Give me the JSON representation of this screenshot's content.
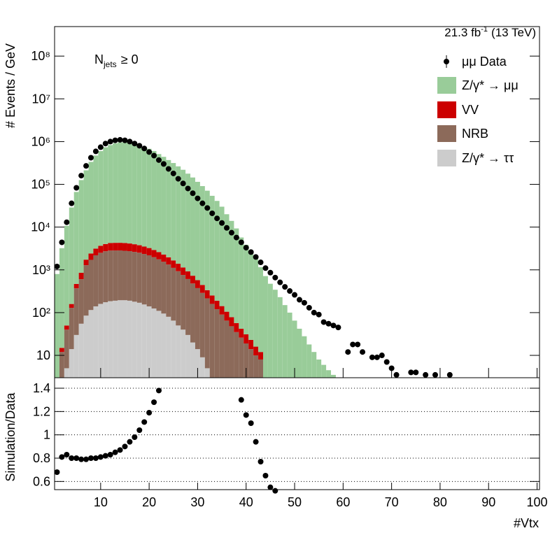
{
  "chart_data": [
    {
      "type": "stacked_bar",
      "lumi": {
        "main": "21.3 fb",
        "sup": "-1",
        "rest": "(13 TeV)"
      },
      "annotation": {
        "main": "N",
        "sub": "jets",
        "rest": "≥ 0"
      },
      "ylabel": "# Events / GeV",
      "log_y": true,
      "legend": "upper right",
      "x": [
        1,
        2,
        3,
        4,
        5,
        6,
        7,
        8,
        9,
        10,
        11,
        12,
        13,
        14,
        15,
        16,
        17,
        18,
        19,
        20,
        21,
        22,
        23,
        24,
        25,
        26,
        27,
        28,
        29,
        30,
        31,
        32,
        33,
        34,
        35,
        36,
        37,
        38,
        39,
        40,
        41,
        42,
        43,
        44,
        45,
        46,
        47,
        48,
        49,
        50,
        51,
        52,
        53,
        54,
        55,
        56,
        57,
        58
      ],
      "series": [
        {
          "name": "Z/γ* → μμ",
          "color": "#99cc99",
          "values": [
            800,
            3200,
            10700,
            28600,
            66000,
            125000,
            211000,
            333000,
            469000,
            596000,
            734000,
            826000,
            906000,
            953000,
            959000,
            936000,
            878000,
            828000,
            762000,
            675000,
            599000,
            508000,
            438000,
            368000,
            314000,
            262000,
            218000,
            177000,
            144000,
            114000,
            90600,
            70700,
            53700,
            40800,
            29900,
            19900,
            13900,
            9240,
            5680,
            3830,
            2840,
            1860,
            1140,
            715,
            473,
            343,
            230,
            150,
            100,
            65,
            42,
            28,
            18,
            12,
            8,
            6,
            4.5,
            3.5
          ]
        },
        {
          "name": "VV",
          "color": "#cc0000",
          "values": [
            null,
            3,
            10,
            30,
            100,
            250,
            450,
            700,
            950,
            1150,
            1300,
            1400,
            1450,
            1450,
            1450,
            1400,
            1350,
            1250,
            1150,
            1050,
            950,
            850,
            740,
            640,
            550,
            460,
            380,
            310,
            250,
            200,
            155,
            120,
            92,
            70,
            52,
            40,
            30,
            22,
            16,
            12,
            9,
            6,
            4,
            null,
            null,
            null,
            null,
            null,
            null,
            null,
            null,
            null,
            null,
            null,
            null,
            null,
            null,
            null
          ]
        },
        {
          "name": "NRB",
          "color": "#8c6a5a",
          "values": [
            null,
            12,
            35,
            115,
            340,
            550,
            1200,
            1600,
            2050,
            2350,
            2550,
            2650,
            2650,
            2650,
            2600,
            2550,
            2450,
            2350,
            2200,
            2050,
            1850,
            1650,
            1450,
            1250,
            1050,
            880,
            720,
            580,
            460,
            360,
            280,
            210,
            160,
            120,
            90,
            65,
            48,
            35,
            26,
            19,
            14,
            10,
            8,
            null,
            null,
            null,
            null,
            null,
            null,
            null,
            null,
            null,
            null,
            null,
            null,
            null,
            null,
            null
          ]
        },
        {
          "name": "Z/γ* → ττ",
          "color": "#cccccc",
          "values": [
            null,
            null,
            5,
            14,
            30,
            55,
            85,
            115,
            140,
            160,
            175,
            185,
            190,
            195,
            195,
            190,
            180,
            170,
            155,
            140,
            125,
            110,
            95,
            80,
            65,
            50,
            40,
            30,
            20,
            14,
            9,
            5,
            null,
            null,
            null,
            null,
            null,
            null,
            null,
            null,
            null,
            null,
            null,
            null,
            null,
            null,
            null,
            null,
            null,
            null,
            null,
            null,
            null,
            null,
            null,
            null,
            null,
            null
          ]
        }
      ],
      "data": {
        "name": "μμ Data",
        "color": "#000000",
        "x": [
          1,
          2,
          3,
          4,
          5,
          6,
          7,
          8,
          9,
          10,
          11,
          12,
          13,
          14,
          15,
          16,
          17,
          18,
          19,
          20,
          21,
          22,
          23,
          24,
          25,
          26,
          27,
          28,
          29,
          30,
          31,
          32,
          33,
          34,
          35,
          36,
          37,
          38,
          39,
          40,
          41,
          42,
          43,
          44,
          45,
          46,
          47,
          48,
          49,
          50,
          51,
          52,
          53,
          54,
          55,
          56,
          57,
          58,
          59,
          61,
          62,
          63,
          64,
          66,
          67,
          68,
          69,
          70,
          71,
          74,
          75,
          77,
          79,
          82
        ],
        "values": [
          1200,
          4400,
          13000,
          36000,
          83000,
          160000,
          270000,
          420000,
          590000,
          740000,
          900000,
          1000000,
          1070000,
          1100000,
          1070000,
          1000000,
          900000,
          800000,
          690000,
          570000,
          470000,
          370000,
          300000,
          230000,
          180000,
          135000,
          105000,
          80000,
          62000,
          47000,
          36000,
          28000,
          21000,
          16000,
          12500,
          9600,
          7400,
          5700,
          4400,
          3300,
          2600,
          2000,
          1500,
          1100,
          860,
          660,
          510,
          400,
          320,
          260,
          200,
          170,
          130,
          100,
          90,
          60,
          55,
          50,
          45,
          12,
          18,
          18,
          12,
          9,
          9,
          10,
          7,
          5,
          3.5,
          4,
          4,
          3.5,
          3.5,
          3.5
        ]
      },
      "xlim": [
        0.5,
        100.5
      ],
      "ylim": [
        3,
        490000000
      ],
      "yticks": [
        10,
        {
          "value": 100,
          "label": "10²"
        },
        {
          "value": 1000,
          "label": "10³"
        },
        {
          "value": 10000,
          "label": "10⁴"
        },
        {
          "value": 100000,
          "label": "10⁵"
        },
        {
          "value": 1000000,
          "label": "10⁶"
        },
        {
          "value": 10000000,
          "label": "10⁷"
        },
        {
          "value": 100000000,
          "label": "10⁸"
        }
      ]
    },
    {
      "type": "scatter",
      "ylabel": "Simulation/Data",
      "xlabel": "#Vtx",
      "color": "#000000",
      "x": [
        1,
        2,
        3,
        4,
        5,
        6,
        7,
        8,
        9,
        10,
        11,
        12,
        13,
        14,
        15,
        16,
        17,
        18,
        19,
        20,
        21,
        22,
        39,
        40,
        41,
        42,
        43,
        44,
        45,
        46
      ],
      "values": [
        0.68,
        0.81,
        0.83,
        0.8,
        0.8,
        0.79,
        0.79,
        0.8,
        0.8,
        0.81,
        0.82,
        0.83,
        0.85,
        0.87,
        0.9,
        0.94,
        0.98,
        1.04,
        1.11,
        1.19,
        1.28,
        1.38,
        1.3,
        1.17,
        1.1,
        0.94,
        0.77,
        0.65,
        0.55,
        0.52
      ],
      "xlim": [
        0.5,
        100.5
      ],
      "ylim": [
        0.53,
        1.49
      ],
      "xticks": [
        10,
        20,
        30,
        40,
        50,
        60,
        70,
        80,
        90,
        100
      ],
      "yticks": [
        0.6,
        0.8,
        1,
        1.2,
        1.4
      ],
      "grid": true
    }
  ]
}
